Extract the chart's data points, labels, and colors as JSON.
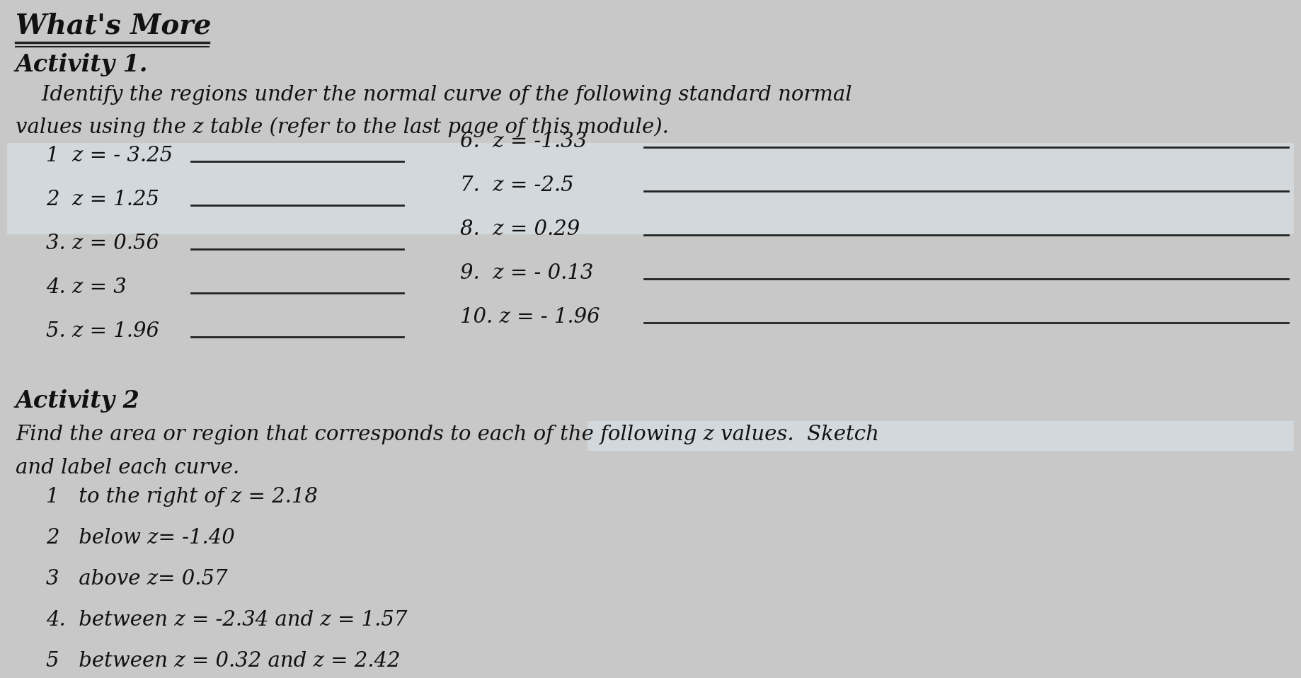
{
  "background_color": "#c8c8c8",
  "title": "What's More",
  "activity1_heading": "Activity 1.",
  "activity1_desc_line1": "    Identify the regions under the normal curve of the following standard normal",
  "activity1_desc_line2": "values using the z table (refer to the last page of this module).",
  "left_items": [
    "1  z = - 3.25",
    "2  z = 1.25",
    "3. z = 0.56",
    "4. z = 3",
    "5. z = 1.96"
  ],
  "right_items": [
    "6.  z = -1.33",
    "7.  z = -2.5",
    "8.  z = 0.29",
    "9.  z = - 0.13",
    "10. z = - 1.96"
  ],
  "activity2_heading": "Activity 2",
  "activity2_desc_line1": "Find the area or region that corresponds to each of the following z values.  Sketch",
  "activity2_desc_line2": "and label each curve.",
  "activity2_items": [
    "1   to the right of z = 2.18",
    "2   below z= -1.40",
    "3   above z= 0.57",
    "4.  between z = -2.34 and z = 1.57",
    "5   between z = 0.32 and z = 2.42"
  ],
  "text_color": "#111111",
  "line_color": "#222222",
  "highlight_color_1": "#dce8f0",
  "highlight_color_2": "#dce8f0",
  "title_fontsize": 28,
  "heading_fontsize": 24,
  "body_fontsize": 21,
  "item_fontsize": 21
}
